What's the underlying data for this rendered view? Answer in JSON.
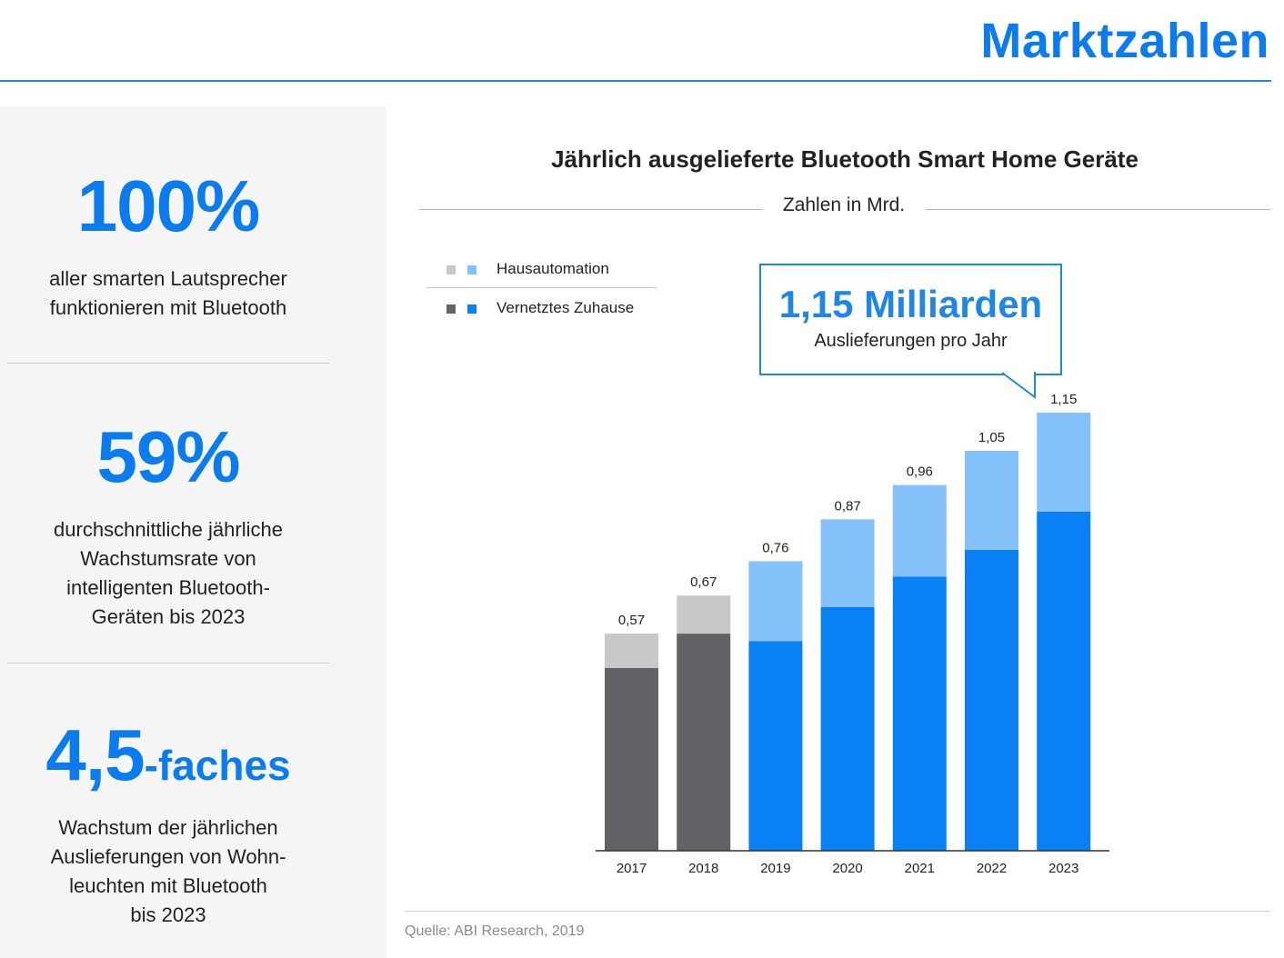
{
  "header": {
    "title": "Marktzahlen"
  },
  "stats": [
    {
      "value": "100%",
      "suffix": "",
      "text": [
        "aller smarten Lautsprecher",
        "funktionieren mit Bluetooth"
      ]
    },
    {
      "value": "59%",
      "suffix": "",
      "text": [
        "durchschnittliche jährliche",
        "Wachstumsrate von",
        "intelligenten Bluetooth-",
        "Geräten bis 2023"
      ]
    },
    {
      "value": "4,5",
      "suffix": "-faches",
      "text": [
        "Wachstum der jährlichen",
        "Auslieferungen von Wohn-",
        "leuchten mit Bluetooth",
        "bis 2023"
      ]
    }
  ],
  "callout": {
    "value": "1,15 Milliarden",
    "text": "Auslieferungen pro Jahr"
  },
  "source": "Quelle: ABI Research, 2019",
  "colors": {
    "accent": "#0a7cf0",
    "blue_dark": "#0a80f5",
    "blue_light": "#85c1fb",
    "gray_dark": "#616266",
    "gray_light": "#c8c8c8"
  },
  "chart_data": {
    "type": "bar",
    "stacked": true,
    "title": "Jährlich ausgelieferte Bluetooth Smart Home Geräte",
    "subtitle": "Zahlen in Mrd.",
    "categories": [
      "2017",
      "2018",
      "2019",
      "2020",
      "2021",
      "2022",
      "2023"
    ],
    "totals_labels": [
      "0,57",
      "0,67",
      "0,76",
      "0,87",
      "0,96",
      "1,05",
      "1,15"
    ],
    "series": [
      {
        "name": "Vernetztes Zuhause",
        "values": [
          0.48,
          0.57,
          0.55,
          0.64,
          0.72,
          0.79,
          0.89
        ]
      },
      {
        "name": "Hausautomation",
        "values": [
          0.09,
          0.1,
          0.21,
          0.23,
          0.24,
          0.26,
          0.26
        ]
      }
    ],
    "legend_position": "top-left",
    "ylim": [
      0,
      1.15
    ],
    "grid": false
  }
}
